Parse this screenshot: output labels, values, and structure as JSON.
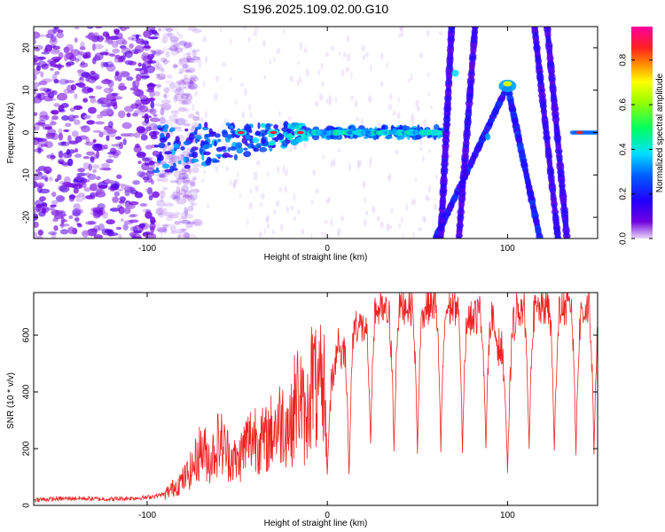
{
  "title": "S196.2025.109.02.00.G10",
  "chart_data": [
    {
      "type": "heatmap",
      "xlabel": "Height of straight line (km)",
      "ylabel": "Frequency (Hz)",
      "xlim": [
        -163,
        150
      ],
      "ylim": [
        -25,
        25
      ],
      "x_ticks": [
        -100,
        0,
        100
      ],
      "y_ticks": [
        -20,
        -10,
        0,
        10,
        20
      ],
      "colorbar": {
        "label": "Normalized spectral amplitude",
        "range": [
          0,
          0.95
        ],
        "ticks": [
          0.0,
          0.2,
          0.4,
          0.6,
          0.8
        ],
        "colors": [
          "#d8c0f0",
          "#4000e0",
          "#0040ff",
          "#00e0ff",
          "#00ff40",
          "#ffff00",
          "#ff8000",
          "#ff0040",
          "#ff00a0"
        ]
      },
      "features": {
        "noise_region_km": [
          -163,
          -80
        ],
        "carrier_frequency_hz": 0,
        "carrier_start_km": -95,
        "gap_km": [
          64,
          68
        ],
        "arch_peak": {
          "x_km": 100,
          "y_hz": 11
        },
        "arc_lines": [
          {
            "x_km": [
              60,
              100
            ],
            "y_hz": [
              -25,
              11
            ]
          },
          {
            "x_km": [
              100,
              118
            ],
            "y_hz": [
              11,
              -25
            ]
          },
          {
            "x_km": [
              73,
              82
            ],
            "y_hz": [
              -25,
              25
            ]
          },
          {
            "x_km": [
              63,
              69
            ],
            "y_hz": [
              -25,
              25
            ]
          },
          {
            "x_km": [
              115,
              128
            ],
            "y_hz": [
              25,
              -25
            ]
          },
          {
            "x_km": [
              122,
              133
            ],
            "y_hz": [
              25,
              -25
            ]
          }
        ],
        "strong_segments_km": [
          [
            -10,
            64
          ],
          [
            136,
            150
          ]
        ]
      }
    },
    {
      "type": "line",
      "xlabel": "Height of straight line (km)",
      "ylabel": "SNR (10 * v/v)",
      "xlim": [
        -163,
        150
      ],
      "ylim": [
        0,
        750
      ],
      "x_ticks": [
        -100,
        0,
        100
      ],
      "y_ticks": [
        0,
        200,
        400,
        600
      ],
      "color": "#ee2222",
      "series": [
        {
          "x": [
            -163,
            -140,
            -120,
            -100,
            -90,
            -80,
            -75,
            -70,
            -65,
            -60,
            -55,
            -50,
            -45,
            -40,
            -35,
            -30,
            -25,
            -20,
            -18,
            -15,
            -12,
            -10,
            -8,
            -5,
            -2,
            0,
            3,
            6,
            8,
            10,
            12,
            15,
            20,
            25,
            30,
            35,
            40,
            45,
            50,
            55,
            60,
            65,
            70,
            75,
            80,
            85,
            90,
            95,
            100,
            105,
            110,
            115,
            120,
            125,
            130,
            135,
            140,
            145,
            150
          ],
          "y": [
            20,
            25,
            22,
            28,
            40,
            90,
            130,
            200,
            160,
            230,
            180,
            150,
            220,
            250,
            220,
            270,
            300,
            280,
            360,
            400,
            260,
            400,
            460,
            350,
            500,
            420,
            460,
            590,
            520,
            600,
            560,
            650,
            620,
            700,
            680,
            670,
            700,
            710,
            680,
            700,
            720,
            690,
            700,
            710,
            660,
            680,
            690,
            560,
            520,
            690,
            700,
            680,
            700,
            690,
            700,
            690,
            680,
            700,
            690
          ]
        }
      ],
      "dips": [
        {
          "x": 0,
          "y": 90
        },
        {
          "x": 12,
          "y": 70
        },
        {
          "x": 24,
          "y": 170
        },
        {
          "x": 37,
          "y": 150
        },
        {
          "x": 50,
          "y": 150
        },
        {
          "x": 63,
          "y": 150
        },
        {
          "x": 75,
          "y": 150
        },
        {
          "x": 88,
          "y": 150
        },
        {
          "x": 100,
          "y": 70
        },
        {
          "x": 112,
          "y": 150
        },
        {
          "x": 126,
          "y": 150
        },
        {
          "x": 138,
          "y": 150
        },
        {
          "x": 148,
          "y": 150
        }
      ]
    }
  ]
}
